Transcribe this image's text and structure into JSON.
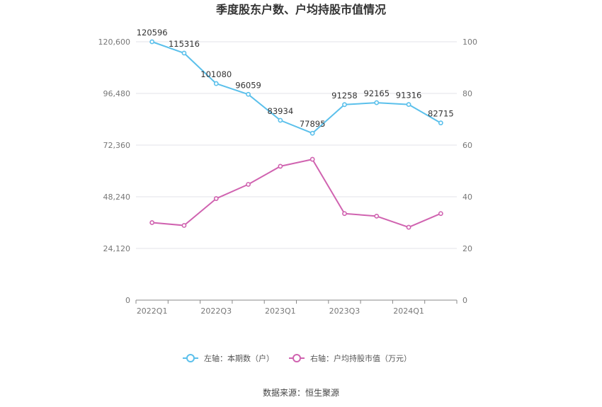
{
  "chart_data": {
    "type": "line",
    "title": "季度股东户数、户均持股市值情况",
    "categories": [
      "2022Q1",
      "2022Q2",
      "2022Q3",
      "2022Q4",
      "2023Q1",
      "2023Q2",
      "2023Q3",
      "2023Q4",
      "2024Q1",
      "2024Q2"
    ],
    "x_tick_labels": [
      "2022Q1",
      "2022Q3",
      "2023Q1",
      "2023Q3",
      "2024Q1"
    ],
    "series": [
      {
        "name": "左轴：本期数（户）",
        "axis": "left",
        "color": "#5bc0eb",
        "values": [
          120596,
          115316,
          101080,
          96059,
          83934,
          77895,
          91258,
          92165,
          91316,
          82715
        ],
        "labels": [
          "120596",
          "115316",
          "101080",
          "96059",
          "83934",
          "77895",
          "91258",
          "92165",
          "91316",
          "82715"
        ]
      },
      {
        "name": "右轴：户均持股市值（万元）",
        "axis": "right",
        "color": "#d063b0",
        "values": [
          30.0,
          28.9,
          39.3,
          44.8,
          51.8,
          54.5,
          33.5,
          32.5,
          28.2,
          33.5
        ]
      }
    ],
    "y_left": {
      "ylim": [
        0,
        120600
      ],
      "ticks": [
        "0",
        "24,120",
        "48,240",
        "72,360",
        "96,480",
        "120,600"
      ]
    },
    "y_right": {
      "ylim": [
        0,
        100
      ],
      "ticks": [
        "0",
        "20",
        "40",
        "60",
        "80",
        "100"
      ]
    },
    "grid": true,
    "legend_position": "bottom"
  },
  "source_text": "数据来源：恒生聚源"
}
